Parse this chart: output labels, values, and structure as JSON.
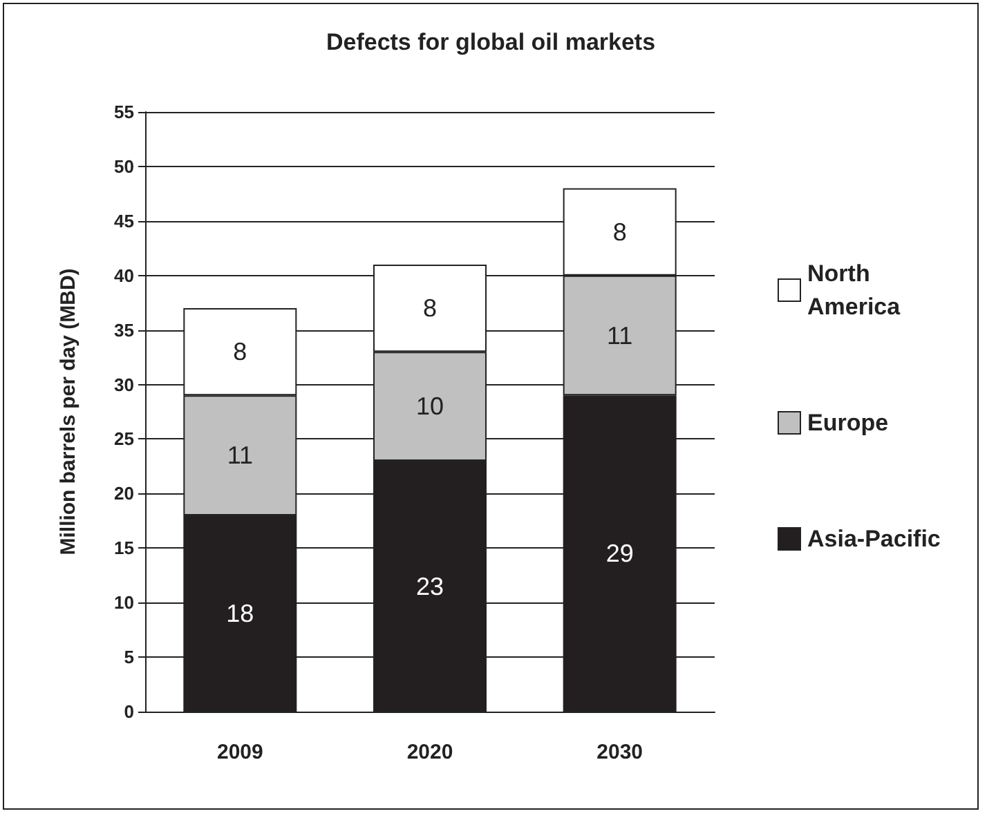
{
  "chart_data": {
    "type": "bar",
    "title": "Defects for global oil markets",
    "ylabel": "Million barrels per day (MBD)",
    "categories": [
      "2009",
      "2020",
      "2030"
    ],
    "series": [
      {
        "name": "Asia-Pacific",
        "color": "#231f20",
        "values": [
          18,
          23,
          29
        ]
      },
      {
        "name": "Europe",
        "color": "#c0c0c0",
        "values": [
          11,
          10,
          11
        ]
      },
      {
        "name": "North America",
        "color": "#ffffff",
        "values": [
          8,
          8,
          8
        ]
      }
    ],
    "stacked": true,
    "ylim": [
      0,
      55
    ],
    "yticks": [
      0,
      5,
      10,
      15,
      20,
      25,
      30,
      35,
      40,
      45,
      50,
      55
    ],
    "grid": "y",
    "legend": "right",
    "data_labels": true
  }
}
